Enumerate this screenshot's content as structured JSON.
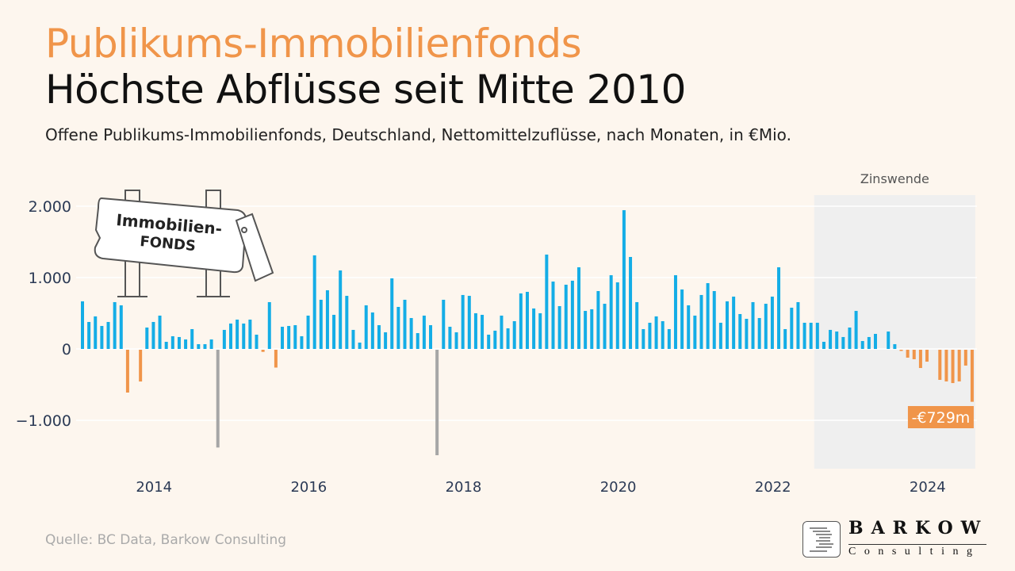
{
  "header": {
    "kicker": "Publikums-Immobilienfonds",
    "title": "Höchste Abflüsse seit Mitte 2010",
    "subtitle": "Offene Publikums-Immobilienfonds, Deutschland, Nettomittelzuflüsse, nach Monaten, in €Mio."
  },
  "source": "Quelle: BC Data, Barkow Consulting",
  "logo": {
    "name": "BARKOW",
    "sub": "Consulting"
  },
  "illustration": {
    "line1": "Immobilien-",
    "line2": "FONDS"
  },
  "colors": {
    "positive": "#14ade6",
    "negative": "#f0954a",
    "outlier": "#a6a6a6",
    "shade": "#efefef",
    "accent": "#f0954a"
  },
  "chart_data": {
    "type": "bar",
    "start_month": "2013-01",
    "end_month": "2024-07",
    "frequency": "monthly",
    "ylim": [
      -1600,
      2200
    ],
    "yticks": [
      -1000,
      0,
      1000,
      2000
    ],
    "ytick_labels": [
      "−1.000",
      "0",
      "1.000",
      "2.000"
    ],
    "xticks": [
      "2014",
      "2016",
      "2018",
      "2020",
      "2022",
      "2024"
    ],
    "grid": "horizontal",
    "outlier_months": [
      "2014-10",
      "2017-08"
    ],
    "shaded_region": {
      "from": "2022-07",
      "to": "2024-07",
      "label": "Zinswende"
    },
    "annotation": {
      "month": "2024-07",
      "label": "-€729m"
    },
    "values": [
      667,
      378,
      456,
      322,
      378,
      656,
      611,
      -600,
      0,
      -445,
      300,
      378,
      467,
      100,
      178,
      167,
      133,
      278,
      67,
      67,
      133,
      -1370,
      267,
      356,
      411,
      356,
      411,
      200,
      -30,
      656,
      -250,
      311,
      322,
      333,
      178,
      467,
      1311,
      689,
      822,
      478,
      1100,
      744,
      267,
      89,
      611,
      511,
      333,
      233,
      989,
      589,
      689,
      433,
      222,
      467,
      333,
      -1478,
      689,
      311,
      233,
      756,
      744,
      500,
      478,
      200,
      256,
      467,
      289,
      389,
      778,
      800,
      567,
      500,
      1322,
      944,
      600,
      900,
      956,
      1144,
      533,
      556,
      811,
      633,
      1033,
      933,
      1944,
      1289,
      656,
      278,
      367,
      456,
      389,
      278,
      1033,
      833,
      611,
      467,
      756,
      922,
      811,
      367,
      667,
      733,
      489,
      422,
      656,
      433,
      633,
      733,
      1144,
      278,
      578,
      656,
      367,
      367,
      367,
      100,
      267,
      244,
      167,
      300,
      533,
      111,
      167,
      211,
      0,
      244,
      67,
      -10,
      -111,
      -133,
      -256,
      -167,
      0,
      -422,
      -444,
      -467,
      -444,
      -222,
      -729
    ]
  }
}
